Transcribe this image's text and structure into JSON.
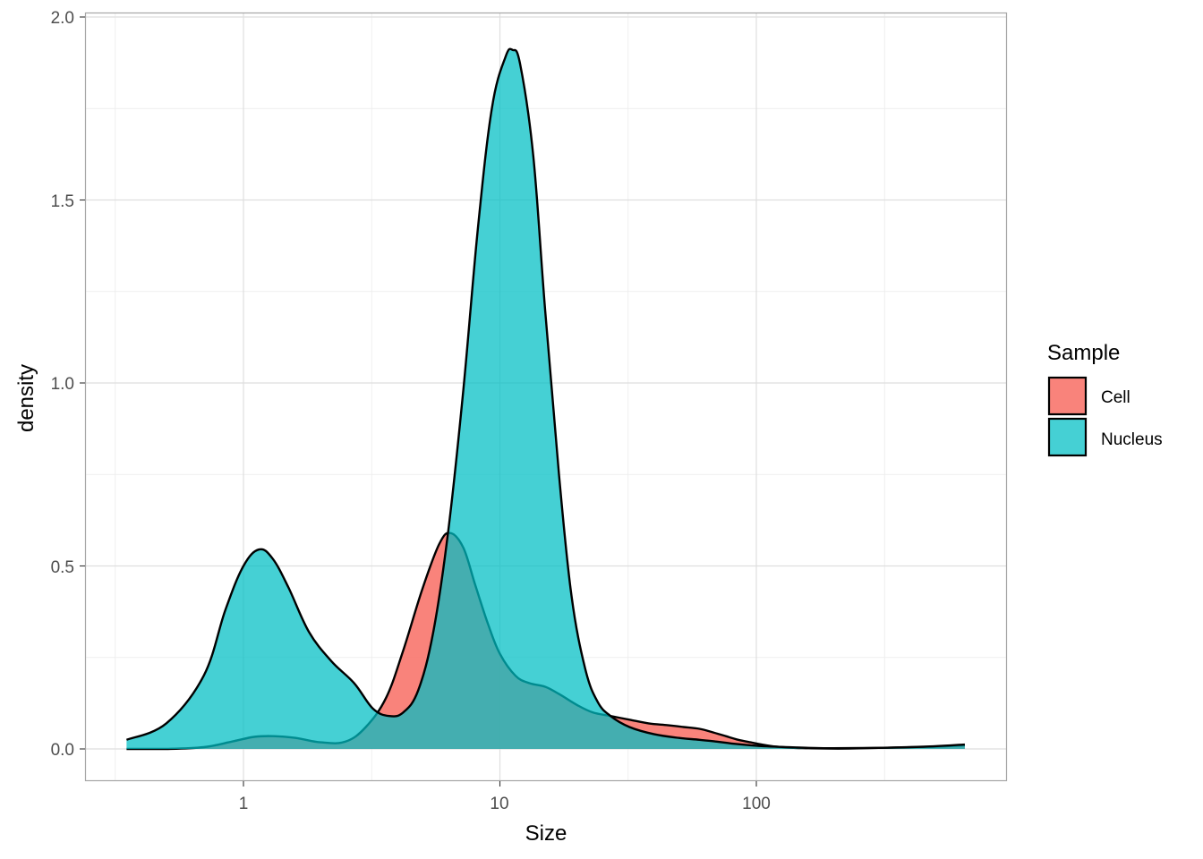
{
  "chart_data": {
    "type": "area",
    "subtype": "density",
    "title": "",
    "xlabel": "Size",
    "ylabel": "density",
    "x_scale": "log10",
    "x_ticks": [
      1,
      10,
      100
    ],
    "x_tick_labels": [
      "1",
      "10",
      "100"
    ],
    "y_ticks": [
      0.0,
      0.5,
      1.0,
      1.5,
      2.0
    ],
    "y_tick_labels": [
      "0.0",
      "0.5",
      "1.0",
      "1.5",
      "2.0"
    ],
    "xlim": [
      0.25,
      900
    ],
    "ylim": [
      -0.09,
      2.01
    ],
    "grid": true,
    "legend": {
      "title": "Sample",
      "position": "right",
      "entries": [
        "Cell",
        "Nucleus"
      ]
    },
    "series": [
      {
        "name": "Cell",
        "color": "#F8766D",
        "x": [
          0.35,
          0.5,
          0.7,
          0.9,
          1.1,
          1.3,
          1.6,
          2.0,
          2.5,
          3.0,
          3.6,
          4.2,
          5.0,
          5.8,
          6.4,
          7.2,
          8.0,
          9.0,
          10.0,
          11.5,
          13,
          15,
          17,
          20,
          23,
          27,
          32,
          38,
          45,
          52,
          60,
          68,
          76,
          85,
          95,
          105,
          120,
          140,
          160,
          190,
          230,
          300,
          400,
          500,
          650
        ],
        "values": [
          0.0,
          0.0,
          0.005,
          0.02,
          0.033,
          0.035,
          0.03,
          0.018,
          0.02,
          0.06,
          0.14,
          0.27,
          0.44,
          0.56,
          0.59,
          0.55,
          0.45,
          0.34,
          0.26,
          0.2,
          0.18,
          0.17,
          0.15,
          0.12,
          0.1,
          0.09,
          0.08,
          0.07,
          0.065,
          0.06,
          0.055,
          0.045,
          0.035,
          0.025,
          0.018,
          0.012,
          0.006,
          0.003,
          0.002,
          0.001,
          0.001,
          0.003,
          0.005,
          0.006,
          0.01
        ]
      },
      {
        "name": "Nucleus",
        "color": "#00BFC4",
        "x": [
          0.35,
          0.5,
          0.7,
          0.85,
          1.0,
          1.15,
          1.3,
          1.5,
          1.8,
          2.2,
          2.7,
          3.2,
          3.7,
          4.2,
          4.8,
          5.5,
          6.3,
          7.2,
          8.2,
          9.3,
          10.5,
          11.2,
          12,
          13.5,
          15,
          17,
          19,
          21.5,
          24,
          27,
          32,
          40,
          50,
          60,
          70,
          80,
          95,
          110,
          130,
          160,
          200,
          300,
          450,
          650
        ],
        "values": [
          0.025,
          0.07,
          0.2,
          0.38,
          0.5,
          0.545,
          0.52,
          0.44,
          0.32,
          0.24,
          0.18,
          0.11,
          0.09,
          0.1,
          0.16,
          0.32,
          0.6,
          0.98,
          1.42,
          1.75,
          1.89,
          1.91,
          1.87,
          1.62,
          1.2,
          0.75,
          0.42,
          0.22,
          0.13,
          0.09,
          0.06,
          0.04,
          0.03,
          0.025,
          0.02,
          0.015,
          0.01,
          0.007,
          0.005,
          0.003,
          0.002,
          0.003,
          0.006,
          0.012
        ]
      }
    ]
  },
  "axes": {
    "x_title": "Size",
    "y_title": "density",
    "x_tick_labels": [
      "1",
      "10",
      "100"
    ],
    "y_tick_labels": [
      "0.0",
      "0.5",
      "1.0",
      "1.5",
      "2.0"
    ]
  },
  "legend": {
    "title": "Sample",
    "items": [
      {
        "label": "Cell",
        "color": "#F8766D"
      },
      {
        "label": "Nucleus",
        "color": "#00BFC4"
      }
    ]
  }
}
